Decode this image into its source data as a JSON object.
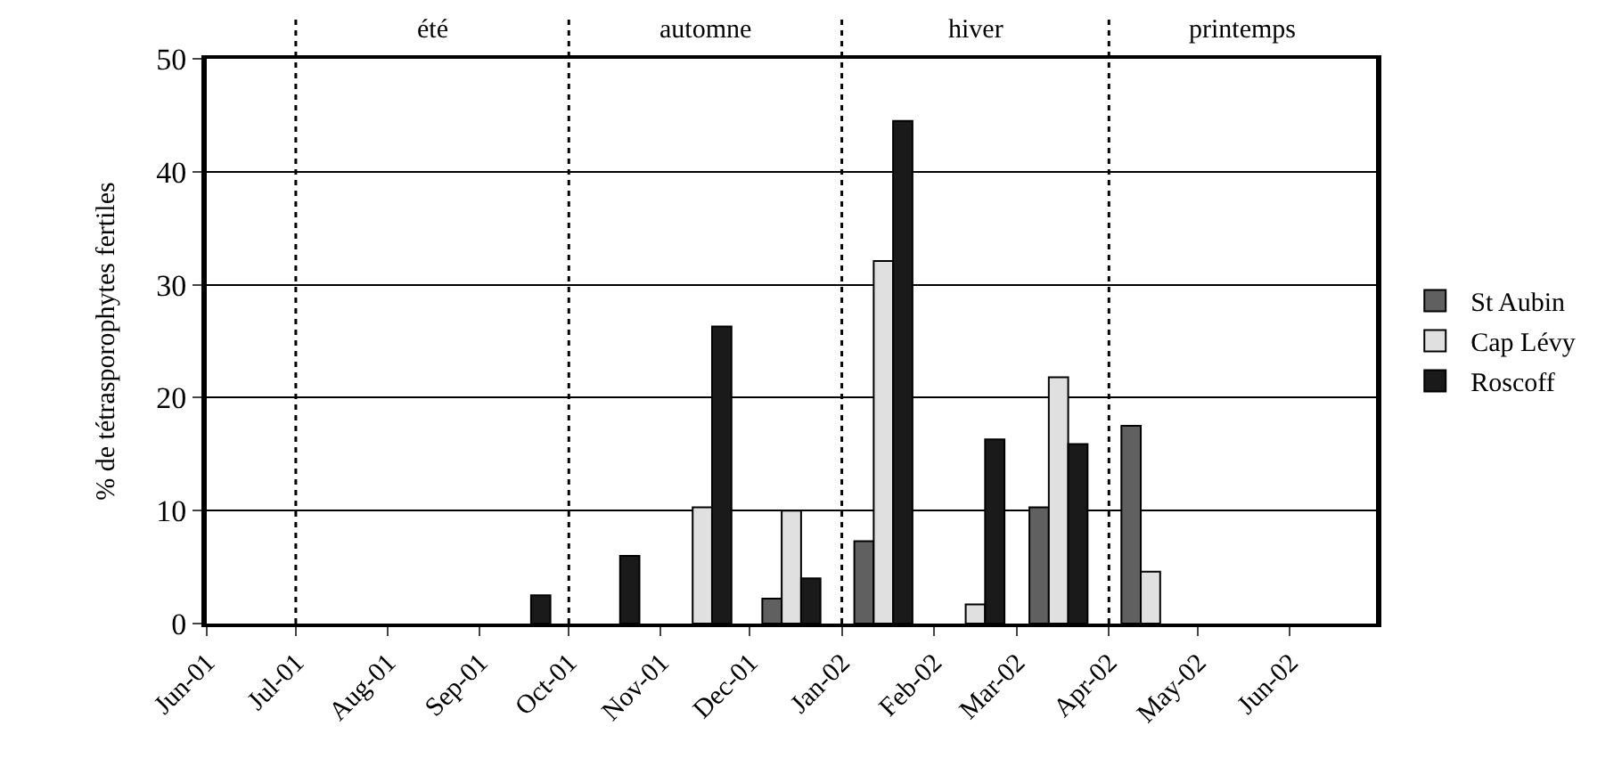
{
  "chart_data": {
    "type": "bar",
    "ylabel": "% de tétrasporophytes fertiles",
    "x": [
      "2001-09-15",
      "2001-10-15",
      "2001-11-15",
      "2001-12-15",
      "2002-01-15",
      "2002-02-15",
      "2002-03-15",
      "2002-04-15"
    ],
    "series": [
      {
        "name": "St Aubin",
        "color": "#606060",
        "values": [
          null,
          null,
          null,
          2.2,
          7.3,
          null,
          10.3,
          17.5
        ]
      },
      {
        "name": "Cap Lévy",
        "color": "#e0e0e0",
        "values": [
          null,
          null,
          10.3,
          10,
          32.1,
          1.7,
          21.8,
          4.6
        ]
      },
      {
        "name": "Roscoff",
        "color": "#1a1a1a",
        "values": [
          2.5,
          6,
          26.3,
          4,
          44.5,
          16.3,
          15.9,
          null
        ]
      }
    ],
    "xlim": [
      "2001-06-01",
      "2002-06-30"
    ],
    "xticks": [
      {
        "value": "2001-06-01",
        "label": "Jun-01"
      },
      {
        "value": "2001-07-01",
        "label": "Jul-01"
      },
      {
        "value": "2001-08-01",
        "label": "Aug-01"
      },
      {
        "value": "2001-09-01",
        "label": "Sep-01"
      },
      {
        "value": "2001-10-01",
        "label": "Oct-01"
      },
      {
        "value": "2001-11-01",
        "label": "Nov-01"
      },
      {
        "value": "2001-12-01",
        "label": "Dec-01"
      },
      {
        "value": "2002-01-01",
        "label": "Jan-02"
      },
      {
        "value": "2002-02-01",
        "label": "Feb-02"
      },
      {
        "value": "2002-03-01",
        "label": "Mar-02"
      },
      {
        "value": "2002-04-01",
        "label": "Apr-02"
      },
      {
        "value": "2002-05-01",
        "label": "May-02"
      },
      {
        "value": "2002-06-01",
        "label": "Jun-02"
      }
    ],
    "ylim": [
      0,
      50
    ],
    "yticks": [
      0,
      10,
      20,
      30,
      40,
      50
    ],
    "ref_lines": [
      {
        "axis": "x",
        "value": "2001-07-01",
        "line_style": "dotted"
      },
      {
        "axis": "x",
        "value": "2001-10-01",
        "line_style": "dotted"
      },
      {
        "axis": "x",
        "value": "2002-01-01",
        "line_style": "dotted"
      },
      {
        "axis": "x",
        "value": "2002-04-01",
        "line_style": "dotted"
      }
    ],
    "annotations": [
      "été",
      "automne",
      "hiver",
      "printemps"
    ],
    "grid": "y",
    "legend": "right"
  }
}
